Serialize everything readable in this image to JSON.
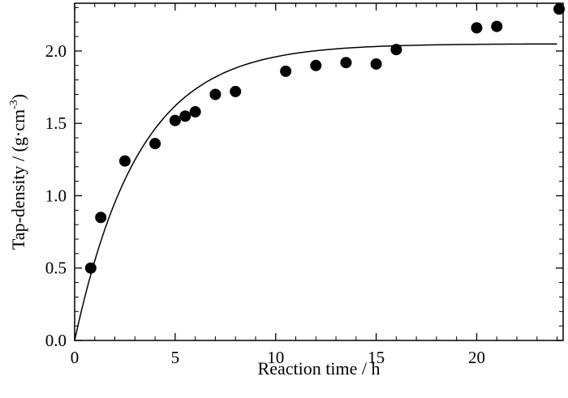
{
  "chart_data": {
    "type": "scatter",
    "xlabel": "Reaction time / h",
    "ylabel_main": "Tap-density / (g·cm",
    "ylabel_sup": "-3",
    "ylabel_tail": ")",
    "xlim": [
      0,
      24.3
    ],
    "ylim": [
      0,
      2.33
    ],
    "xticks": [
      0,
      5,
      10,
      15,
      20
    ],
    "xtick_labels": [
      "0",
      "5",
      "10",
      "15",
      "20"
    ],
    "yticks": [
      0,
      0.5,
      1.0,
      1.5,
      2.0
    ],
    "ytick_labels": [
      "0.0",
      "0.5",
      "1.0",
      "1.5",
      "2.0"
    ],
    "grid": false,
    "series": [
      {
        "type": "scatter",
        "color": "#000000",
        "points": [
          {
            "x": 0.8,
            "y": 0.5
          },
          {
            "x": 1.3,
            "y": 0.85
          },
          {
            "x": 2.5,
            "y": 1.24
          },
          {
            "x": 4.0,
            "y": 1.36
          },
          {
            "x": 5.0,
            "y": 1.52
          },
          {
            "x": 5.5,
            "y": 1.55
          },
          {
            "x": 6.0,
            "y": 1.58
          },
          {
            "x": 7.0,
            "y": 1.7
          },
          {
            "x": 8.0,
            "y": 1.72
          },
          {
            "x": 10.5,
            "y": 1.86
          },
          {
            "x": 12.0,
            "y": 1.9
          },
          {
            "x": 13.5,
            "y": 1.92
          },
          {
            "x": 15.0,
            "y": 1.91
          },
          {
            "x": 16.0,
            "y": 2.01
          },
          {
            "x": 20.0,
            "y": 2.16
          },
          {
            "x": 21.0,
            "y": 2.17
          },
          {
            "x": 24.1,
            "y": 2.29
          }
        ]
      },
      {
        "type": "line",
        "color": "#000000",
        "curve": {
          "form": "y = A*(1 - exp(-x/tau))",
          "A": 2.05,
          "tau": 3.2,
          "x_start": 0,
          "x_end": 24
        }
      }
    ]
  }
}
